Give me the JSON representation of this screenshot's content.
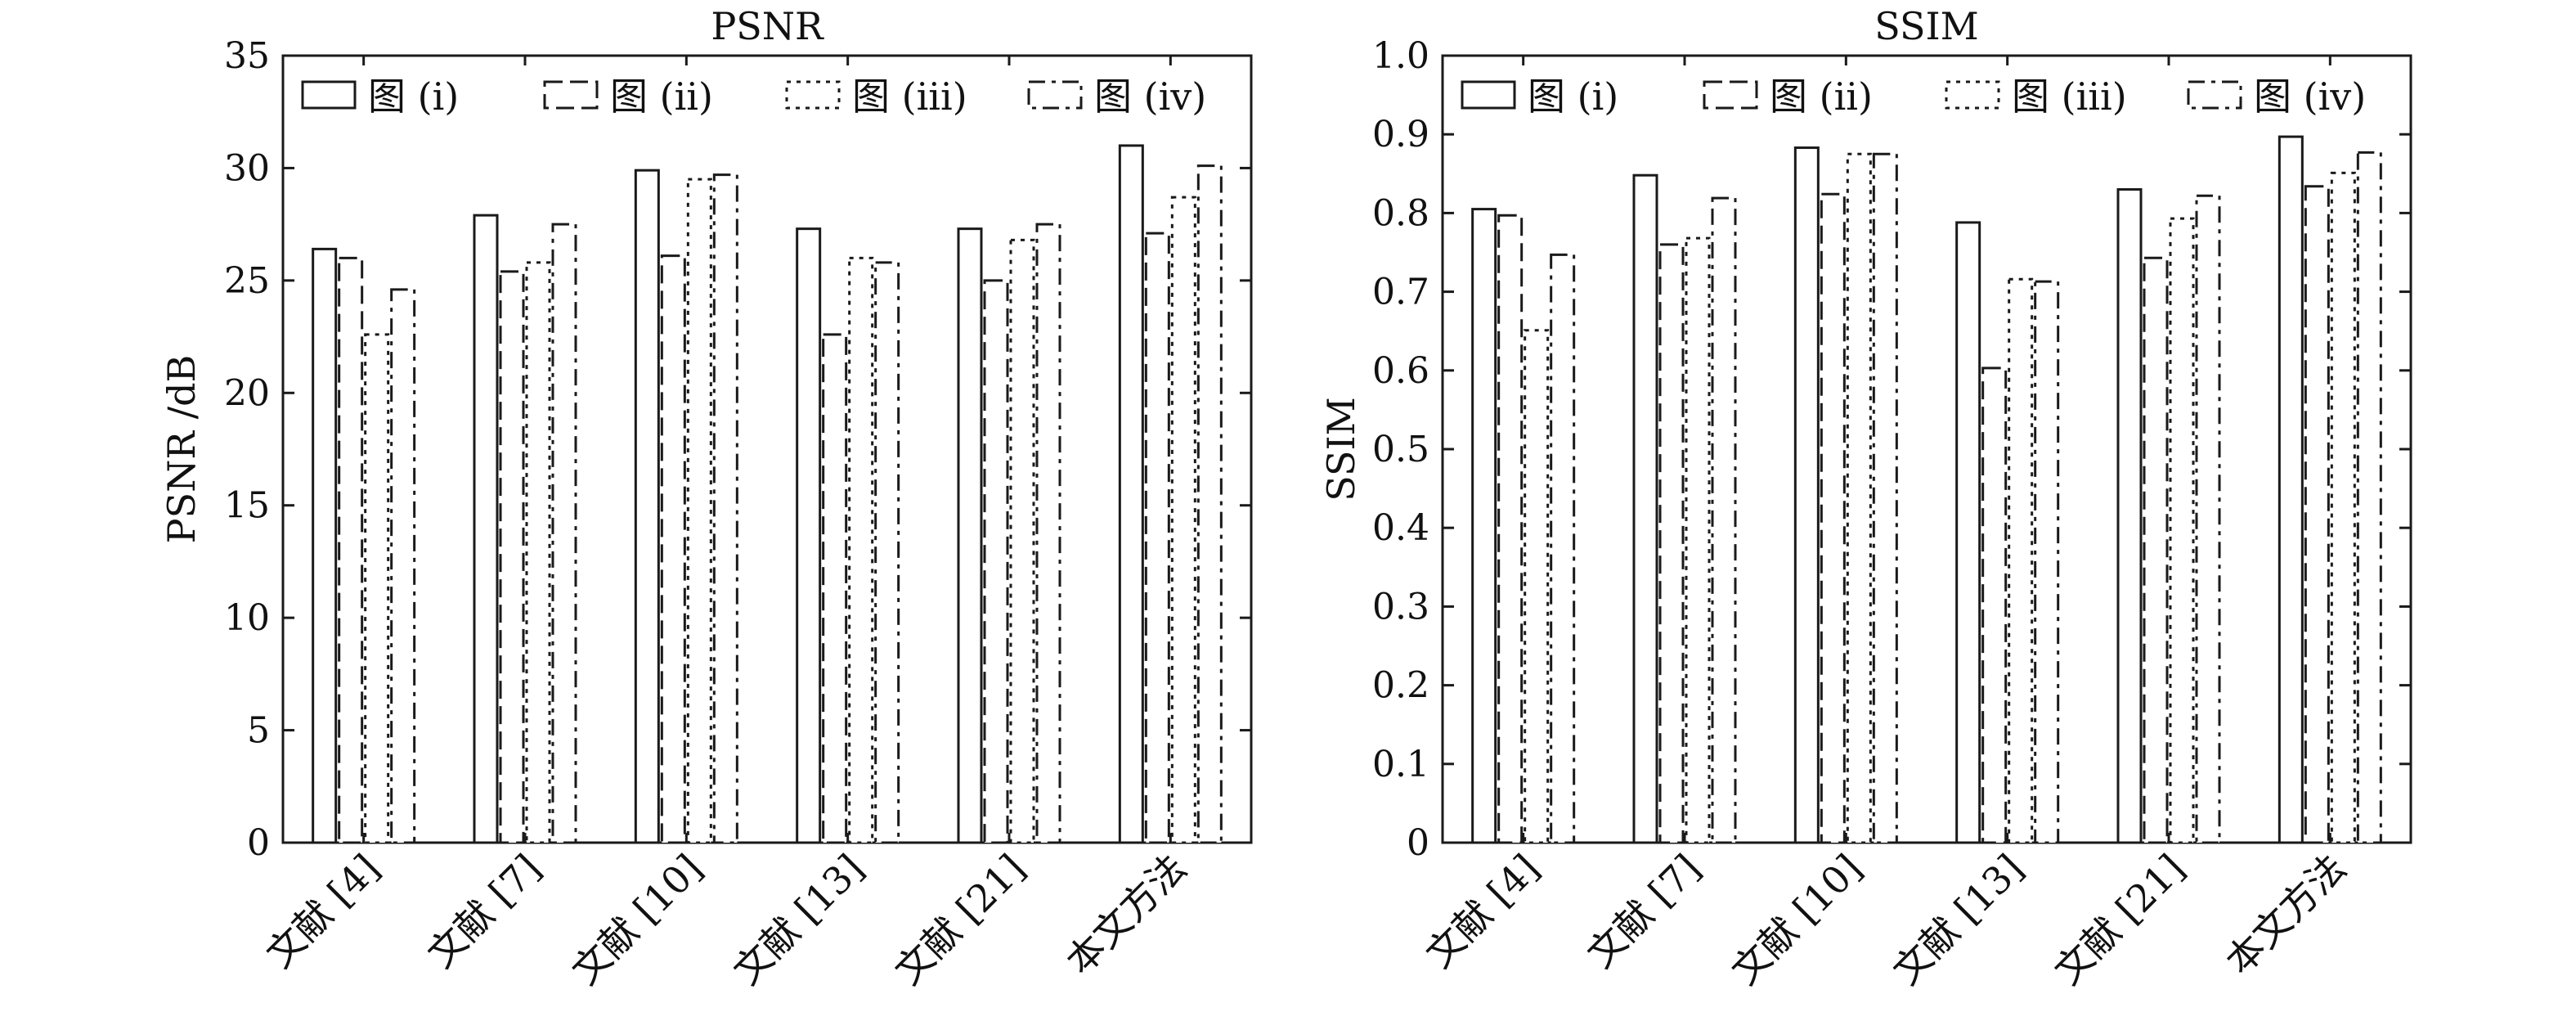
{
  "chart_data": [
    {
      "type": "bar",
      "title": "PSNR",
      "xlabel": "",
      "ylabel": "PSNR /dB",
      "ylim": [
        0,
        35
      ],
      "yticks": [
        "0",
        "5",
        "10",
        "15",
        "20",
        "25",
        "30",
        "35"
      ],
      "categories": [
        "文献 [4]",
        "文献 [7]",
        "文献 [10]",
        "文献 [13]",
        "文献 [21]",
        "本文方法"
      ],
      "series": [
        {
          "name": "图 (i)",
          "style": "solid",
          "values": [
            26.4,
            27.9,
            29.9,
            27.3,
            27.3,
            31.0
          ]
        },
        {
          "name": "图 (ii)",
          "style": "dashed",
          "values": [
            26.0,
            25.4,
            26.1,
            22.6,
            25.0,
            27.1
          ]
        },
        {
          "name": "图 (iii)",
          "style": "dotted",
          "values": [
            22.6,
            25.8,
            29.5,
            26.0,
            26.8,
            28.7
          ]
        },
        {
          "name": "图 (iv)",
          "style": "dashdot",
          "values": [
            24.6,
            27.5,
            29.7,
            25.8,
            27.5,
            30.1
          ]
        }
      ],
      "legend_position": "top",
      "grid": false
    },
    {
      "type": "bar",
      "title": "SSIM",
      "xlabel": "",
      "ylabel": "SSIM",
      "ylim": [
        0,
        1.0
      ],
      "yticks": [
        "0",
        "0.1",
        "0.2",
        "0.3",
        "0.4",
        "0.5",
        "0.6",
        "0.7",
        "0.8",
        "0.9",
        "1.0"
      ],
      "categories": [
        "文献 [4]",
        "文献 [7]",
        "文献 [10]",
        "文献 [13]",
        "文献 [21]",
        "本文方法"
      ],
      "series": [
        {
          "name": "图 (i)",
          "style": "solid",
          "values": [
            0.805,
            0.848,
            0.883,
            0.788,
            0.83,
            0.897
          ]
        },
        {
          "name": "图 (ii)",
          "style": "dashed",
          "values": [
            0.797,
            0.76,
            0.824,
            0.603,
            0.743,
            0.834
          ]
        },
        {
          "name": "图 (iii)",
          "style": "dotted",
          "values": [
            0.651,
            0.768,
            0.875,
            0.716,
            0.793,
            0.851
          ]
        },
        {
          "name": "图 (iv)",
          "style": "dashdot",
          "values": [
            0.747,
            0.819,
            0.875,
            0.713,
            0.822,
            0.877
          ]
        }
      ],
      "legend_position": "top",
      "grid": false
    }
  ]
}
